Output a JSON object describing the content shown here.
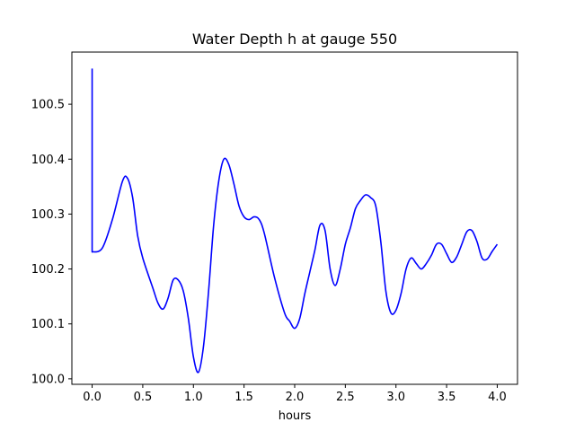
{
  "chart_data": {
    "type": "line",
    "title": "Water Depth h at gauge 550",
    "xlabel": "hours",
    "ylabel": "",
    "xlim": [
      -0.2,
      4.2
    ],
    "ylim": [
      99.99,
      100.595
    ],
    "xticks": [
      {
        "value": 0.0,
        "label": "0.0"
      },
      {
        "value": 0.5,
        "label": "0.5"
      },
      {
        "value": 1.0,
        "label": "1.0"
      },
      {
        "value": 1.5,
        "label": "1.5"
      },
      {
        "value": 2.0,
        "label": "2.0"
      },
      {
        "value": 2.5,
        "label": "2.5"
      },
      {
        "value": 3.0,
        "label": "3.0"
      },
      {
        "value": 3.5,
        "label": "3.5"
      },
      {
        "value": 4.0,
        "label": "4.0"
      }
    ],
    "yticks": [
      {
        "value": 100.0,
        "label": "100.0"
      },
      {
        "value": 100.1,
        "label": "100.1"
      },
      {
        "value": 100.2,
        "label": "100.2"
      },
      {
        "value": 100.3,
        "label": "100.3"
      },
      {
        "value": 100.4,
        "label": "100.4"
      },
      {
        "value": 100.5,
        "label": "100.5"
      }
    ],
    "grid": false,
    "series": [
      {
        "color": "#0000ff",
        "x": [
          0.0,
          0.0,
          0.0,
          0.1,
          0.2,
          0.3,
          0.35,
          0.4,
          0.45,
          0.5,
          0.6,
          0.65,
          0.7,
          0.75,
          0.8,
          0.85,
          0.9,
          0.95,
          1.0,
          1.05,
          1.1,
          1.15,
          1.2,
          1.25,
          1.3,
          1.35,
          1.4,
          1.45,
          1.5,
          1.55,
          1.6,
          1.65,
          1.7,
          1.8,
          1.9,
          1.95,
          2.0,
          2.05,
          2.1,
          2.15,
          2.2,
          2.25,
          2.3,
          2.35,
          2.4,
          2.45,
          2.5,
          2.55,
          2.6,
          2.65,
          2.7,
          2.75,
          2.8,
          2.85,
          2.9,
          2.95,
          3.0,
          3.05,
          3.1,
          3.15,
          3.2,
          3.25,
          3.3,
          3.35,
          3.4,
          3.45,
          3.5,
          3.55,
          3.6,
          3.65,
          3.7,
          3.75,
          3.8,
          3.85,
          3.9,
          3.95,
          4.0
        ],
        "y": [
          100.565,
          100.565,
          100.231,
          100.238,
          100.29,
          100.36,
          100.365,
          100.33,
          100.26,
          100.22,
          100.165,
          100.138,
          100.127,
          100.147,
          100.18,
          100.18,
          100.16,
          100.11,
          100.04,
          100.012,
          100.06,
          100.16,
          100.28,
          100.36,
          100.4,
          100.39,
          100.355,
          100.315,
          100.295,
          100.29,
          100.295,
          100.29,
          100.265,
          100.185,
          100.12,
          100.105,
          100.092,
          100.11,
          100.155,
          100.195,
          100.235,
          100.28,
          100.27,
          100.2,
          100.17,
          100.2,
          100.245,
          100.275,
          100.31,
          100.325,
          100.335,
          100.33,
          100.315,
          100.25,
          100.16,
          100.12,
          100.125,
          100.155,
          100.2,
          100.22,
          100.21,
          100.2,
          100.21,
          100.225,
          100.245,
          100.245,
          100.228,
          100.212,
          100.222,
          100.245,
          100.268,
          100.27,
          100.25,
          100.22,
          100.218,
          100.232,
          100.245
        ]
      }
    ]
  }
}
